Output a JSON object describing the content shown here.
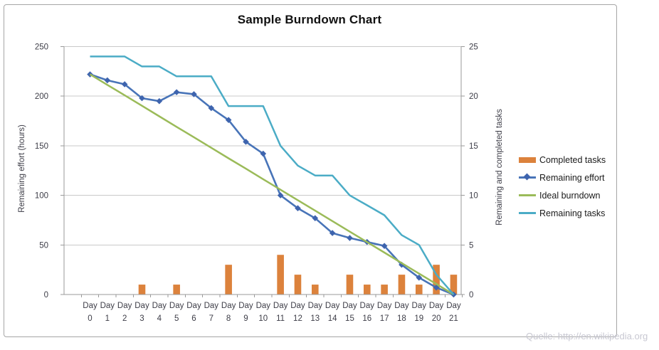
{
  "title": "Sample Burndown Chart",
  "watermark": "Quelle: http://en.wikipedia.org",
  "axes": {
    "left": {
      "title": "Remaining effort (hours)",
      "ticks": [
        0,
        50,
        100,
        150,
        200,
        250
      ],
      "range": [
        0,
        250
      ]
    },
    "right": {
      "title": "Remaining and completed tasks",
      "ticks": [
        0,
        5,
        10,
        15,
        20,
        25
      ],
      "range": [
        0,
        25
      ]
    },
    "x": {
      "word": "Day",
      "numbers": [
        "0",
        "1",
        "2",
        "3",
        "4",
        "5",
        "6",
        "7",
        "8",
        "9",
        "10",
        "11",
        "12",
        "13",
        "14",
        "15",
        "16",
        "17",
        "18",
        "19",
        "20",
        "21"
      ]
    }
  },
  "colors": {
    "bar_orange": "#dc823c",
    "effort_blue": "#4874b8",
    "effort_marker": "#3e64ae",
    "ideal_green": "#9bbb59",
    "tasks_teal": "#4bacc6",
    "gridline": "#c9c9c9",
    "axis_line": "#9a9a9a",
    "tick_text": "#3d3d47"
  },
  "chart_data": {
    "type": "combo-bar-line",
    "title": "Sample Burndown Chart",
    "xlabel": "",
    "ylabel_left": "Remaining effort (hours)",
    "ylabel_right": "Remaining and completed tasks",
    "ylim_left": [
      0,
      250
    ],
    "ylim_right": [
      0,
      25
    ],
    "grid": true,
    "legend_position": "right",
    "categories": [
      "Day 0",
      "Day 1",
      "Day 2",
      "Day 3",
      "Day 4",
      "Day 5",
      "Day 6",
      "Day 7",
      "Day 8",
      "Day 9",
      "Day 10",
      "Day 11",
      "Day 12",
      "Day 13",
      "Day 14",
      "Day 15",
      "Day 16",
      "Day 17",
      "Day 18",
      "Day 19",
      "Day 20",
      "Day 21"
    ],
    "series": [
      {
        "name": "Completed tasks",
        "type": "bar",
        "axis": "right",
        "color": "#dc823c",
        "values": [
          0,
          0,
          0,
          1,
          0,
          1,
          0,
          0,
          3,
          0,
          0,
          4,
          2,
          1,
          0,
          2,
          1,
          1,
          2,
          1,
          3,
          2
        ]
      },
      {
        "name": "Remaining effort",
        "type": "line",
        "marker": "diamond",
        "axis": "left",
        "color": "#4874b8",
        "marker_color": "#3e64ae",
        "values": [
          222,
          216,
          212,
          198,
          195,
          204,
          202,
          188,
          176,
          154,
          142,
          100,
          87,
          77,
          62,
          57,
          53,
          49,
          30,
          17,
          7,
          0
        ]
      },
      {
        "name": "Ideal burndown",
        "type": "line",
        "axis": "left",
        "color": "#9bbb59",
        "values": [
          222,
          211.4,
          200.9,
          190.3,
          179.7,
          169.1,
          158.6,
          148.0,
          137.4,
          126.9,
          116.3,
          105.7,
          95.1,
          84.6,
          74.0,
          63.4,
          52.9,
          42.3,
          31.7,
          21.1,
          10.6,
          0
        ]
      },
      {
        "name": "Remaining tasks",
        "type": "line",
        "axis": "right",
        "color": "#4bacc6",
        "values": [
          24,
          24,
          24,
          23,
          23,
          22,
          22,
          22,
          19,
          19,
          19,
          15,
          13,
          12,
          12,
          10,
          9,
          8,
          6,
          5,
          2,
          0
        ]
      }
    ]
  }
}
